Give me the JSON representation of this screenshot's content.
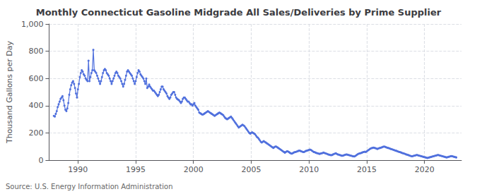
{
  "chart_data": {
    "type": "line",
    "title": "Monthly Connecticut Gasoline Midgrade All Sales/Deliveries by Prime Supplier",
    "ylabel": "Thousand Gallons per Day",
    "source": "Source: U.S. Energy Information Administration",
    "marker": "circle",
    "grid": true,
    "xlim": [
      1987.5,
      2023.2
    ],
    "xticks": [
      1990,
      1995,
      2000,
      2005,
      2010,
      2015,
      2020
    ],
    "ylim": [
      0,
      1000
    ],
    "yticks": [
      0,
      200,
      400,
      600,
      800,
      {
        "value": 1000,
        "label": "1,000"
      }
    ],
    "x": [
      1987.917,
      1988.0,
      1988.083,
      1988.167,
      1988.25,
      1988.333,
      1988.417,
      1988.5,
      1988.583,
      1988.667,
      1988.75,
      1988.833,
      1988.917,
      1989.0,
      1989.083,
      1989.167,
      1989.25,
      1989.333,
      1989.417,
      1989.5,
      1989.583,
      1989.667,
      1989.75,
      1989.833,
      1989.917,
      1990.0,
      1990.083,
      1990.167,
      1990.25,
      1990.333,
      1990.417,
      1990.5,
      1990.583,
      1990.667,
      1990.75,
      1990.833,
      1990.917,
      1991.0,
      1991.083,
      1991.167,
      1991.25,
      1991.333,
      1991.417,
      1991.5,
      1991.583,
      1991.667,
      1991.75,
      1991.833,
      1991.917,
      1992.0,
      1992.083,
      1992.167,
      1992.25,
      1992.333,
      1992.417,
      1992.5,
      1992.583,
      1992.667,
      1992.75,
      1992.833,
      1992.917,
      1993.0,
      1993.083,
      1993.167,
      1993.25,
      1993.333,
      1993.417,
      1993.5,
      1993.583,
      1993.667,
      1993.75,
      1993.833,
      1993.917,
      1994.0,
      1994.083,
      1994.167,
      1994.25,
      1994.333,
      1994.417,
      1994.5,
      1994.583,
      1994.667,
      1994.75,
      1994.833,
      1994.917,
      1995.0,
      1995.083,
      1995.167,
      1995.25,
      1995.333,
      1995.417,
      1995.5,
      1995.583,
      1995.667,
      1995.75,
      1995.833,
      1995.917,
      1996.0,
      1996.083,
      1996.167,
      1996.25,
      1996.333,
      1996.417,
      1996.5,
      1996.583,
      1996.667,
      1996.75,
      1996.833,
      1996.917,
      1997.0,
      1997.083,
      1997.167,
      1997.25,
      1997.333,
      1997.417,
      1997.5,
      1997.583,
      1997.667,
      1997.75,
      1997.833,
      1997.917,
      1998.0,
      1998.083,
      1998.167,
      1998.25,
      1998.333,
      1998.417,
      1998.5,
      1998.583,
      1998.667,
      1998.75,
      1998.833,
      1998.917,
      1999.0,
      1999.083,
      1999.167,
      1999.25,
      1999.333,
      1999.417,
      1999.5,
      1999.583,
      1999.667,
      1999.75,
      1999.833,
      1999.917,
      2000.0,
      2000.083,
      2000.167,
      2000.25,
      2000.333,
      2000.417,
      2000.5,
      2000.583,
      2000.667,
      2000.75,
      2000.833,
      2000.917,
      2001.0,
      2001.083,
      2001.167,
      2001.25,
      2001.333,
      2001.417,
      2001.5,
      2001.583,
      2001.667,
      2001.75,
      2001.833,
      2001.917,
      2002.0,
      2002.083,
      2002.167,
      2002.25,
      2002.333,
      2002.417,
      2002.5,
      2002.583,
      2002.667,
      2002.75,
      2002.833,
      2002.917,
      2003.0,
      2003.083,
      2003.167,
      2003.25,
      2003.333,
      2003.417,
      2003.5,
      2003.583,
      2003.667,
      2003.75,
      2003.833,
      2003.917,
      2004.0,
      2004.083,
      2004.167,
      2004.25,
      2004.333,
      2004.417,
      2004.5,
      2004.583,
      2004.667,
      2004.75,
      2004.833,
      2004.917,
      2005.0,
      2005.083,
      2005.167,
      2005.25,
      2005.333,
      2005.417,
      2005.5,
      2005.583,
      2005.667,
      2005.75,
      2005.833,
      2005.917,
      2006.0,
      2006.083,
      2006.167,
      2006.25,
      2006.333,
      2006.417,
      2006.5,
      2006.583,
      2006.667,
      2006.75,
      2006.833,
      2006.917,
      2007.0,
      2007.083,
      2007.167,
      2007.25,
      2007.333,
      2007.417,
      2007.5,
      2007.583,
      2007.667,
      2007.75,
      2007.833,
      2007.917,
      2008.0,
      2008.083,
      2008.167,
      2008.25,
      2008.333,
      2008.417,
      2008.5,
      2008.583,
      2008.667,
      2008.75,
      2008.833,
      2008.917,
      2009.0,
      2009.083,
      2009.167,
      2009.25,
      2009.333,
      2009.417,
      2009.5,
      2009.583,
      2009.667,
      2009.75,
      2009.833,
      2009.917,
      2010.0,
      2010.083,
      2010.167,
      2010.25,
      2010.333,
      2010.417,
      2010.5,
      2010.583,
      2010.667,
      2010.75,
      2010.833,
      2010.917,
      2011.0,
      2011.083,
      2011.167,
      2011.25,
      2011.333,
      2011.417,
      2011.5,
      2011.583,
      2011.667,
      2011.75,
      2011.833,
      2011.917,
      2012.0,
      2012.083,
      2012.167,
      2012.25,
      2012.333,
      2012.417,
      2012.5,
      2012.583,
      2012.667,
      2012.75,
      2012.833,
      2012.917,
      2013.0,
      2013.083,
      2013.167,
      2013.25,
      2013.333,
      2013.417,
      2013.5,
      2013.583,
      2013.667,
      2013.75,
      2013.833,
      2013.917,
      2014.0,
      2014.083,
      2014.167,
      2014.25,
      2014.333,
      2014.417,
      2014.5,
      2014.583,
      2014.667,
      2014.75,
      2014.833,
      2014.917,
      2015.0,
      2015.083,
      2015.167,
      2015.25,
      2015.333,
      2015.417,
      2015.5,
      2015.583,
      2015.667,
      2015.75,
      2015.833,
      2015.917,
      2016.0,
      2016.083,
      2016.167,
      2016.25,
      2016.333,
      2016.417,
      2016.5,
      2016.583,
      2016.667,
      2016.75,
      2016.833,
      2016.917,
      2017.0,
      2017.083,
      2017.167,
      2017.25,
      2017.333,
      2017.417,
      2017.5,
      2017.583,
      2017.667,
      2017.75,
      2017.833,
      2017.917,
      2018.0,
      2018.083,
      2018.167,
      2018.25,
      2018.333,
      2018.417,
      2018.5,
      2018.583,
      2018.667,
      2018.75,
      2018.833,
      2018.917,
      2019.0,
      2019.083,
      2019.167,
      2019.25,
      2019.333,
      2019.417,
      2019.5,
      2019.583,
      2019.667,
      2019.75,
      2019.833,
      2019.917,
      2020.0,
      2020.083,
      2020.167,
      2020.25,
      2020.333,
      2020.417,
      2020.5,
      2020.583,
      2020.667,
      2020.75,
      2020.833,
      2020.917,
      2021.0,
      2021.083,
      2021.167,
      2021.25,
      2021.333,
      2021.417,
      2021.5,
      2021.583,
      2021.667,
      2021.75,
      2021.833,
      2021.917,
      2022.0,
      2022.083,
      2022.167,
      2022.25,
      2022.333,
      2022.417,
      2022.5,
      2022.583,
      2022.667,
      2022.75
    ],
    "values": [
      325,
      320,
      340,
      360,
      390,
      410,
      430,
      450,
      460,
      470,
      440,
      400,
      370,
      360,
      380,
      420,
      480,
      520,
      550,
      570,
      580,
      560,
      530,
      490,
      460,
      520,
      560,
      610,
      640,
      660,
      650,
      630,
      620,
      600,
      590,
      580,
      730,
      580,
      610,
      640,
      660,
      810,
      660,
      650,
      640,
      620,
      600,
      580,
      560,
      580,
      610,
      640,
      660,
      670,
      660,
      640,
      630,
      620,
      600,
      580,
      560,
      580,
      600,
      620,
      640,
      650,
      640,
      620,
      610,
      600,
      580,
      560,
      540,
      560,
      590,
      620,
      650,
      660,
      650,
      640,
      630,
      620,
      600,
      580,
      560,
      580,
      610,
      640,
      660,
      650,
      630,
      620,
      610,
      600,
      580,
      560,
      600,
      530,
      540,
      555,
      540,
      530,
      520,
      510,
      510,
      500,
      490,
      480,
      470,
      480,
      500,
      520,
      540,
      540,
      520,
      510,
      500,
      490,
      470,
      460,
      450,
      460,
      480,
      490,
      500,
      500,
      480,
      460,
      450,
      445,
      440,
      430,
      420,
      430,
      450,
      460,
      460,
      450,
      440,
      430,
      430,
      420,
      410,
      410,
      400,
      410,
      420,
      400,
      390,
      380,
      370,
      350,
      345,
      340,
      335,
      335,
      340,
      345,
      350,
      355,
      360,
      355,
      350,
      345,
      340,
      335,
      330,
      325,
      330,
      335,
      340,
      345,
      350,
      345,
      340,
      335,
      330,
      320,
      310,
      305,
      300,
      305,
      310,
      315,
      320,
      310,
      300,
      290,
      280,
      270,
      260,
      250,
      240,
      245,
      250,
      255,
      260,
      255,
      250,
      240,
      230,
      220,
      210,
      200,
      195,
      200,
      205,
      200,
      195,
      190,
      180,
      170,
      165,
      155,
      145,
      135,
      130,
      135,
      140,
      135,
      130,
      125,
      120,
      115,
      110,
      105,
      100,
      95,
      90,
      95,
      100,
      100,
      95,
      90,
      85,
      80,
      75,
      70,
      65,
      60,
      55,
      60,
      65,
      65,
      60,
      55,
      50,
      48,
      50,
      55,
      58,
      60,
      62,
      65,
      68,
      70,
      68,
      65,
      62,
      60,
      60,
      65,
      68,
      70,
      72,
      75,
      78,
      75,
      70,
      65,
      60,
      58,
      55,
      52,
      50,
      48,
      46,
      48,
      50,
      52,
      55,
      53,
      50,
      48,
      45,
      42,
      40,
      38,
      36,
      38,
      42,
      45,
      48,
      50,
      45,
      42,
      40,
      38,
      35,
      33,
      32,
      35,
      38,
      40,
      42,
      40,
      38,
      36,
      34,
      32,
      30,
      28,
      27,
      30,
      35,
      40,
      45,
      48,
      50,
      52,
      55,
      58,
      60,
      62,
      60,
      65,
      70,
      75,
      80,
      85,
      88,
      90,
      92,
      90,
      88,
      85,
      82,
      85,
      88,
      90,
      92,
      95,
      98,
      100,
      98,
      95,
      92,
      90,
      88,
      85,
      82,
      80,
      78,
      75,
      72,
      70,
      68,
      65,
      62,
      60,
      58,
      55,
      52,
      50,
      48,
      45,
      42,
      40,
      38,
      35,
      32,
      30,
      28,
      30,
      32,
      34,
      36,
      38,
      36,
      34,
      32,
      30,
      28,
      26,
      24,
      22,
      20,
      18,
      16,
      18,
      20,
      22,
      24,
      26,
      28,
      30,
      32,
      34,
      36,
      38,
      36,
      34,
      32,
      30,
      28,
      26,
      24,
      22,
      20,
      22,
      24,
      26,
      28,
      30,
      28,
      26,
      24,
      22,
      20
    ]
  }
}
